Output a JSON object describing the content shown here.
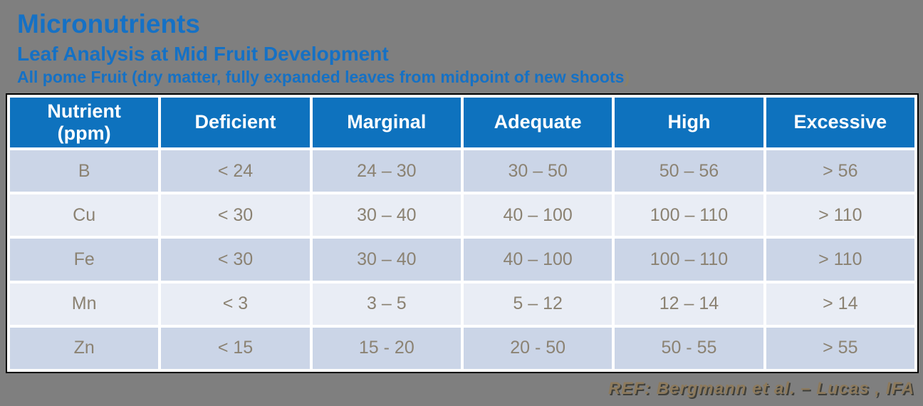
{
  "colors": {
    "background": "#7F7F7F",
    "accent_blue": "#1571C5",
    "paren_color": "#8A8268",
    "header_bg": "#0E72BE",
    "header_text": "#FFFFFF",
    "row_odd": "#CBD5E7",
    "row_even": "#E9EDF5",
    "cell_text": "#8B8272",
    "ref_text": "#8D7A5C"
  },
  "header": {
    "title": "Micronutrients",
    "subtitle": "Leaf Analysis at Mid Fruit Development",
    "subtitle2": "All pome Fruit (dry matter, fully expanded leaves from midpoint of new shoots",
    "subtitle2_paren": ")"
  },
  "table": {
    "columns": [
      {
        "label": "Nutrient",
        "sub": "(ppm)"
      },
      {
        "label": "Deficient"
      },
      {
        "label": "Marginal"
      },
      {
        "label": "Adequate"
      },
      {
        "label": "High"
      },
      {
        "label": "Excessive"
      }
    ],
    "rows": [
      [
        "B",
        "< 24",
        "24 – 30",
        "30 – 50",
        "50 – 56",
        "> 56"
      ],
      [
        "Cu",
        "< 30",
        "30 – 40",
        "40 – 100",
        "100 – 110",
        "> 110"
      ],
      [
        "Fe",
        "< 30",
        "30 – 40",
        "40 – 100",
        "100 – 110",
        "> 110"
      ],
      [
        "Mn",
        "< 3",
        "3 – 5",
        "5 – 12",
        "12 – 14",
        "> 14"
      ],
      [
        "Zn",
        "< 15",
        "15 - 20",
        "20 - 50",
        "50 - 55",
        "> 55"
      ]
    ]
  },
  "footer": {
    "reference": "REF: Bergmann et al. – Lucas , IFA"
  }
}
